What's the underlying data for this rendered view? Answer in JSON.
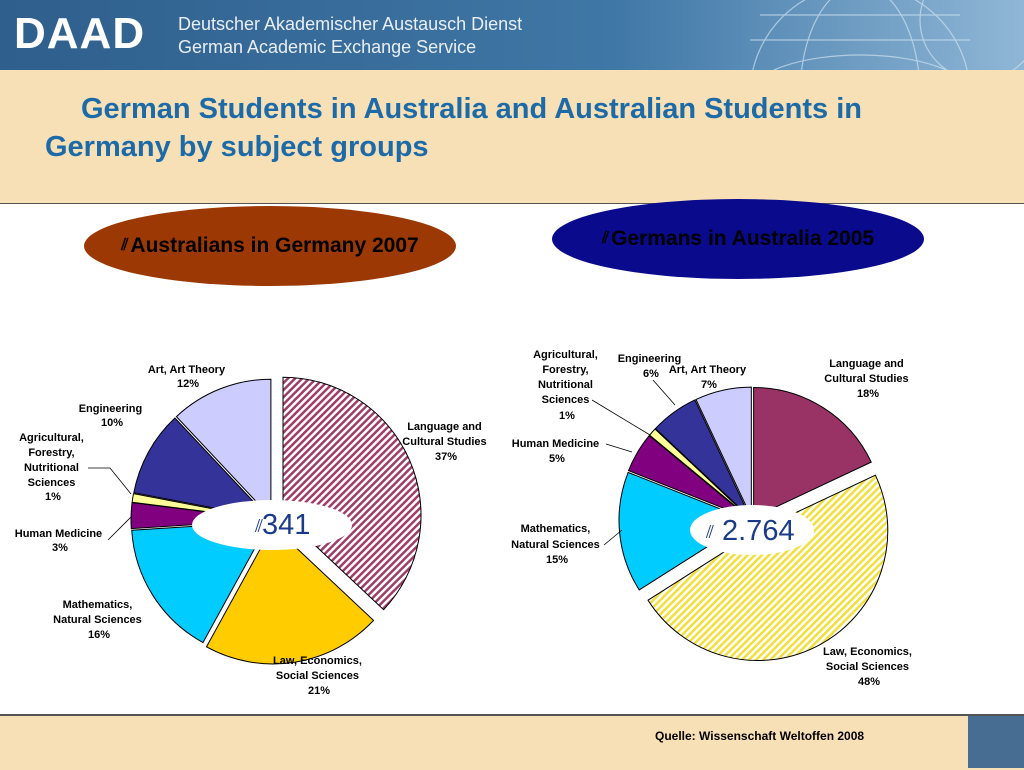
{
  "header": {
    "logo": "DAAD",
    "org_de": "Deutscher Akademischer Austausch Dienst",
    "org_en": "German Academic Exchange Service"
  },
  "title": "German Students in Australia and Australian Students in Germany by subject groups",
  "chart_data": [
    {
      "type": "pie",
      "title": "Australians in Germany 2007",
      "total": "341",
      "slices": [
        {
          "label": "Language and Cultural Studies",
          "value": 37,
          "value_label": "37%",
          "color": "#8b3a5a",
          "pattern": "hatch-pink"
        },
        {
          "label": "Law, Economics, Social Sciences",
          "value": 21,
          "value_label": "21%",
          "color": "#ffcc00"
        },
        {
          "label": "Mathematics, Natural Sciences",
          "value": 16,
          "value_label": "16%",
          "color": "#00ccff"
        },
        {
          "label": "Human Medicine",
          "value": 3,
          "value_label": "3%",
          "color": "#800080"
        },
        {
          "label": "Agricultural, Forestry, Nutritional Sciences",
          "value": 1,
          "value_label": "1%",
          "color": "#ffff99"
        },
        {
          "label": "Engineering",
          "value": 10,
          "value_label": "10%",
          "color": "#333399"
        },
        {
          "label": "Art, Art Theory",
          "value": 12,
          "value_label": "12%",
          "color": "#ccccff"
        }
      ]
    },
    {
      "type": "pie",
      "title": "Germans in Australia 2005",
      "total": "2.764",
      "slices": [
        {
          "label": "Language and Cultural Studies",
          "value": 18,
          "value_label": "18%",
          "color": "#993366"
        },
        {
          "label": "Law, Economics, Social Sciences",
          "value": 48,
          "value_label": "48%",
          "color": "#ffff99",
          "pattern": "hatch-yellow"
        },
        {
          "label": "Mathematics, Natural Sciences",
          "value": 15,
          "value_label": "15%",
          "color": "#00ccff"
        },
        {
          "label": "Human Medicine",
          "value": 5,
          "value_label": "5%",
          "color": "#800080"
        },
        {
          "label": "Agricultural, Forestry, Nutritional Sciences",
          "value": 1,
          "value_label": "1%",
          "color": "#ffff99"
        },
        {
          "label": "Engineering",
          "value": 6,
          "value_label": "6%",
          "color": "#333399"
        },
        {
          "label": "Art, Art Theory",
          "value": 7,
          "value_label": "7%",
          "color": "#ccccff"
        }
      ]
    }
  ],
  "footer": {
    "source": "Quelle:  Wissenschaft Weltoffen 2008"
  }
}
